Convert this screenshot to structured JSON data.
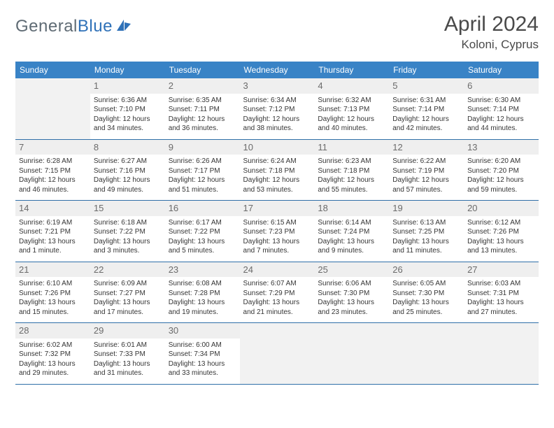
{
  "brand": {
    "part1": "General",
    "part2": "Blue"
  },
  "title": "April 2024",
  "location": "Koloni, Cyprus",
  "colors": {
    "header_bg": "#3983c6",
    "header_text": "#ffffff",
    "rule": "#2f6fa8",
    "daynum_bg": "#efefef",
    "daynum_text": "#6b6b6b",
    "body_text": "#353535",
    "logo_gray": "#5f6b74",
    "logo_blue": "#2f71b8"
  },
  "weekdays": [
    "Sunday",
    "Monday",
    "Tuesday",
    "Wednesday",
    "Thursday",
    "Friday",
    "Saturday"
  ],
  "first_weekday_offset": 1,
  "days": [
    {
      "n": 1,
      "sunrise": "6:36 AM",
      "sunset": "7:10 PM",
      "daylight": "12 hours and 34 minutes."
    },
    {
      "n": 2,
      "sunrise": "6:35 AM",
      "sunset": "7:11 PM",
      "daylight": "12 hours and 36 minutes."
    },
    {
      "n": 3,
      "sunrise": "6:34 AM",
      "sunset": "7:12 PM",
      "daylight": "12 hours and 38 minutes."
    },
    {
      "n": 4,
      "sunrise": "6:32 AM",
      "sunset": "7:13 PM",
      "daylight": "12 hours and 40 minutes."
    },
    {
      "n": 5,
      "sunrise": "6:31 AM",
      "sunset": "7:14 PM",
      "daylight": "12 hours and 42 minutes."
    },
    {
      "n": 6,
      "sunrise": "6:30 AM",
      "sunset": "7:14 PM",
      "daylight": "12 hours and 44 minutes."
    },
    {
      "n": 7,
      "sunrise": "6:28 AM",
      "sunset": "7:15 PM",
      "daylight": "12 hours and 46 minutes."
    },
    {
      "n": 8,
      "sunrise": "6:27 AM",
      "sunset": "7:16 PM",
      "daylight": "12 hours and 49 minutes."
    },
    {
      "n": 9,
      "sunrise": "6:26 AM",
      "sunset": "7:17 PM",
      "daylight": "12 hours and 51 minutes."
    },
    {
      "n": 10,
      "sunrise": "6:24 AM",
      "sunset": "7:18 PM",
      "daylight": "12 hours and 53 minutes."
    },
    {
      "n": 11,
      "sunrise": "6:23 AM",
      "sunset": "7:18 PM",
      "daylight": "12 hours and 55 minutes."
    },
    {
      "n": 12,
      "sunrise": "6:22 AM",
      "sunset": "7:19 PM",
      "daylight": "12 hours and 57 minutes."
    },
    {
      "n": 13,
      "sunrise": "6:20 AM",
      "sunset": "7:20 PM",
      "daylight": "12 hours and 59 minutes."
    },
    {
      "n": 14,
      "sunrise": "6:19 AM",
      "sunset": "7:21 PM",
      "daylight": "13 hours and 1 minute."
    },
    {
      "n": 15,
      "sunrise": "6:18 AM",
      "sunset": "7:22 PM",
      "daylight": "13 hours and 3 minutes."
    },
    {
      "n": 16,
      "sunrise": "6:17 AM",
      "sunset": "7:22 PM",
      "daylight": "13 hours and 5 minutes."
    },
    {
      "n": 17,
      "sunrise": "6:15 AM",
      "sunset": "7:23 PM",
      "daylight": "13 hours and 7 minutes."
    },
    {
      "n": 18,
      "sunrise": "6:14 AM",
      "sunset": "7:24 PM",
      "daylight": "13 hours and 9 minutes."
    },
    {
      "n": 19,
      "sunrise": "6:13 AM",
      "sunset": "7:25 PM",
      "daylight": "13 hours and 11 minutes."
    },
    {
      "n": 20,
      "sunrise": "6:12 AM",
      "sunset": "7:26 PM",
      "daylight": "13 hours and 13 minutes."
    },
    {
      "n": 21,
      "sunrise": "6:10 AM",
      "sunset": "7:26 PM",
      "daylight": "13 hours and 15 minutes."
    },
    {
      "n": 22,
      "sunrise": "6:09 AM",
      "sunset": "7:27 PM",
      "daylight": "13 hours and 17 minutes."
    },
    {
      "n": 23,
      "sunrise": "6:08 AM",
      "sunset": "7:28 PM",
      "daylight": "13 hours and 19 minutes."
    },
    {
      "n": 24,
      "sunrise": "6:07 AM",
      "sunset": "7:29 PM",
      "daylight": "13 hours and 21 minutes."
    },
    {
      "n": 25,
      "sunrise": "6:06 AM",
      "sunset": "7:30 PM",
      "daylight": "13 hours and 23 minutes."
    },
    {
      "n": 26,
      "sunrise": "6:05 AM",
      "sunset": "7:30 PM",
      "daylight": "13 hours and 25 minutes."
    },
    {
      "n": 27,
      "sunrise": "6:03 AM",
      "sunset": "7:31 PM",
      "daylight": "13 hours and 27 minutes."
    },
    {
      "n": 28,
      "sunrise": "6:02 AM",
      "sunset": "7:32 PM",
      "daylight": "13 hours and 29 minutes."
    },
    {
      "n": 29,
      "sunrise": "6:01 AM",
      "sunset": "7:33 PM",
      "daylight": "13 hours and 31 minutes."
    },
    {
      "n": 30,
      "sunrise": "6:00 AM",
      "sunset": "7:34 PM",
      "daylight": "13 hours and 33 minutes."
    }
  ]
}
